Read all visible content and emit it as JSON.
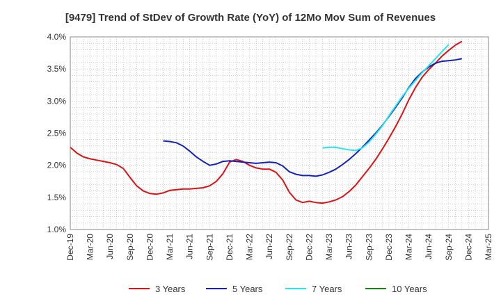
{
  "chart_data": {
    "type": "line",
    "title": "[9479]  Trend of StDev of Growth Rate (YoY) of 12Mo Mov Sum of Revenues",
    "xlabel": "",
    "ylabel": "",
    "ylim": [
      1.0,
      4.0
    ],
    "y_ticks": [
      "1.0%",
      "1.5%",
      "2.0%",
      "2.5%",
      "3.0%",
      "3.5%",
      "4.0%"
    ],
    "x_tick_labels": [
      "Dec-19",
      "Mar-20",
      "Jun-20",
      "Sep-20",
      "Dec-20",
      "Mar-21",
      "Jun-21",
      "Sep-21",
      "Dec-21",
      "Mar-22",
      "Jun-22",
      "Sep-22",
      "Dec-22",
      "Mar-23",
      "Jun-23",
      "Sep-23",
      "Dec-23",
      "Mar-24",
      "Jun-24",
      "Sep-24",
      "Dec-24",
      "Mar-25"
    ],
    "x_start": "Dec-19",
    "grid": true,
    "legend_position": "bottom",
    "series": [
      {
        "name": "3 Years",
        "color": "#dd1111",
        "start_index": 0,
        "values": [
          2.28,
          2.19,
          2.13,
          2.1,
          2.08,
          2.06,
          2.04,
          2.01,
          1.95,
          1.81,
          1.68,
          1.6,
          1.56,
          1.55,
          1.57,
          1.61,
          1.62,
          1.63,
          1.63,
          1.64,
          1.65,
          1.68,
          1.75,
          1.87,
          2.05,
          2.09,
          2.06,
          2.0,
          1.96,
          1.94,
          1.94,
          1.89,
          1.77,
          1.58,
          1.46,
          1.42,
          1.44,
          1.42,
          1.41,
          1.43,
          1.46,
          1.51,
          1.59,
          1.69,
          1.82,
          1.95,
          2.09,
          2.25,
          2.42,
          2.6,
          2.8,
          3.02,
          3.21,
          3.37,
          3.49,
          3.59,
          3.7,
          3.79,
          3.87,
          3.93
        ]
      },
      {
        "name": "5 Years",
        "color": "#1122bb",
        "start_index": 14,
        "values": [
          2.38,
          2.37,
          2.35,
          2.3,
          2.22,
          2.13,
          2.06,
          2.0,
          2.02,
          2.06,
          2.07,
          2.06,
          2.05,
          2.04,
          2.03,
          2.04,
          2.05,
          2.04,
          1.99,
          1.9,
          1.86,
          1.84,
          1.84,
          1.83,
          1.85,
          1.89,
          1.94,
          2.01,
          2.09,
          2.18,
          2.28,
          2.39,
          2.5,
          2.62,
          2.76,
          2.9,
          3.05,
          3.21,
          3.35,
          3.45,
          3.53,
          3.59,
          3.62,
          3.63,
          3.64,
          3.66
        ]
      },
      {
        "name": "7 Years",
        "color": "#22e5f0",
        "start_index": 38,
        "values": [
          2.27,
          2.28,
          2.28,
          2.26,
          2.24,
          2.23,
          2.27,
          2.36,
          2.48,
          2.61,
          2.77,
          2.92,
          3.07,
          3.2,
          3.32,
          3.44,
          3.55,
          3.66,
          3.77,
          3.88
        ]
      },
      {
        "name": "10 Years",
        "color": "#118811",
        "start_index": 0,
        "values": []
      }
    ]
  }
}
